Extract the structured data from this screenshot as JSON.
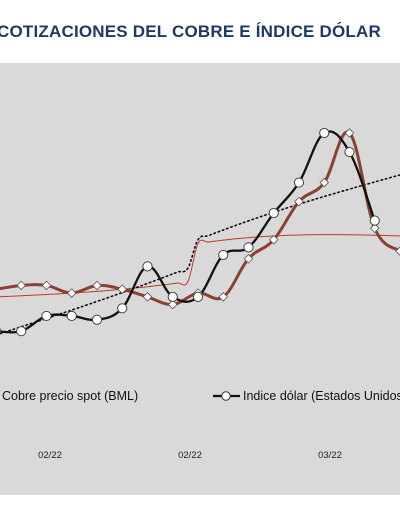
{
  "title": "COTIZACIONES DEL COBRE E ÍNDICE DÓLAR",
  "chart_data": {
    "type": "line",
    "title": "COTIZACIONES DEL COBRE E ÍNDICE DÓLAR",
    "x_tick_labels": [
      "02/22",
      "02/22",
      "03/22"
    ],
    "grid": false,
    "legend_position": "bottom",
    "colors": {
      "copper": "#8b4033",
      "copper_trend": "#c0392b",
      "dollar": "#111111",
      "dollar_trend": "#111111",
      "background": "#d9d9d9"
    },
    "series": [
      {
        "name": "Cobre precio spot (BML)",
        "marker_points": [
          [
            0,
            42
          ],
          [
            1,
            43
          ],
          [
            2,
            43
          ],
          [
            3,
            41
          ],
          [
            4,
            43
          ],
          [
            5,
            42
          ],
          [
            6,
            40
          ],
          [
            7,
            38
          ],
          [
            8,
            41
          ],
          [
            9,
            40
          ],
          [
            10,
            50
          ],
          [
            11,
            55
          ],
          [
            12,
            65
          ],
          [
            13,
            70
          ],
          [
            14,
            83
          ],
          [
            15,
            58
          ],
          [
            16,
            52
          ]
        ]
      },
      {
        "name": "Indice dólar (Estados Unidos)",
        "marker_points": [
          [
            0,
            31
          ],
          [
            1,
            31
          ],
          [
            2,
            35
          ],
          [
            3,
            35
          ],
          [
            4,
            34
          ],
          [
            5,
            37
          ],
          [
            6,
            48
          ],
          [
            7,
            40
          ],
          [
            8,
            40
          ],
          [
            9,
            51
          ],
          [
            10,
            53
          ],
          [
            11,
            62
          ],
          [
            12,
            70
          ],
          [
            13,
            83
          ],
          [
            14,
            78
          ],
          [
            15,
            60
          ]
        ]
      },
      {
        "name": "",
        "style": "dotted trend",
        "values": [
          [
            0,
            30
          ],
          [
            16,
            72
          ]
        ]
      },
      {
        "name": "",
        "style": "thin red trend",
        "values": [
          [
            0,
            40
          ],
          [
            16,
            56
          ]
        ]
      }
    ]
  }
}
